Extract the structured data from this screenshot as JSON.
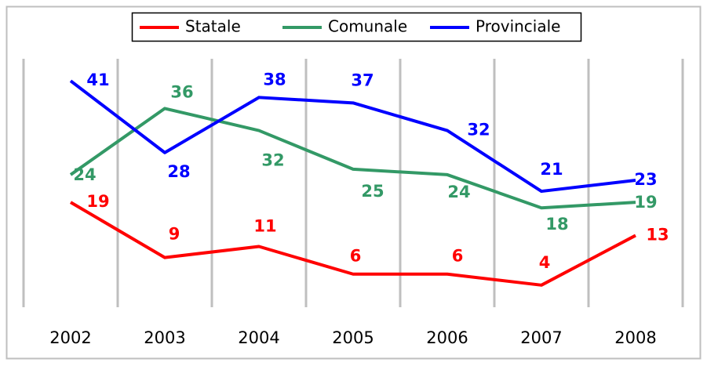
{
  "chart_data": {
    "type": "line",
    "categories": [
      "2002",
      "2003",
      "2004",
      "2005",
      "2006",
      "2007",
      "2008"
    ],
    "series": [
      {
        "name": "Statale",
        "color": "#ff0000",
        "values": [
          19,
          9,
          11,
          6,
          6,
          4,
          13
        ]
      },
      {
        "name": "Comunale",
        "color": "#339966",
        "values": [
          24,
          36,
          32,
          25,
          24,
          18,
          19
        ]
      },
      {
        "name": "Provinciale",
        "color": "#0000ff",
        "values": [
          41,
          28,
          38,
          37,
          32,
          21,
          23
        ]
      }
    ],
    "ylim": [
      0,
      45
    ],
    "legend": "top"
  }
}
